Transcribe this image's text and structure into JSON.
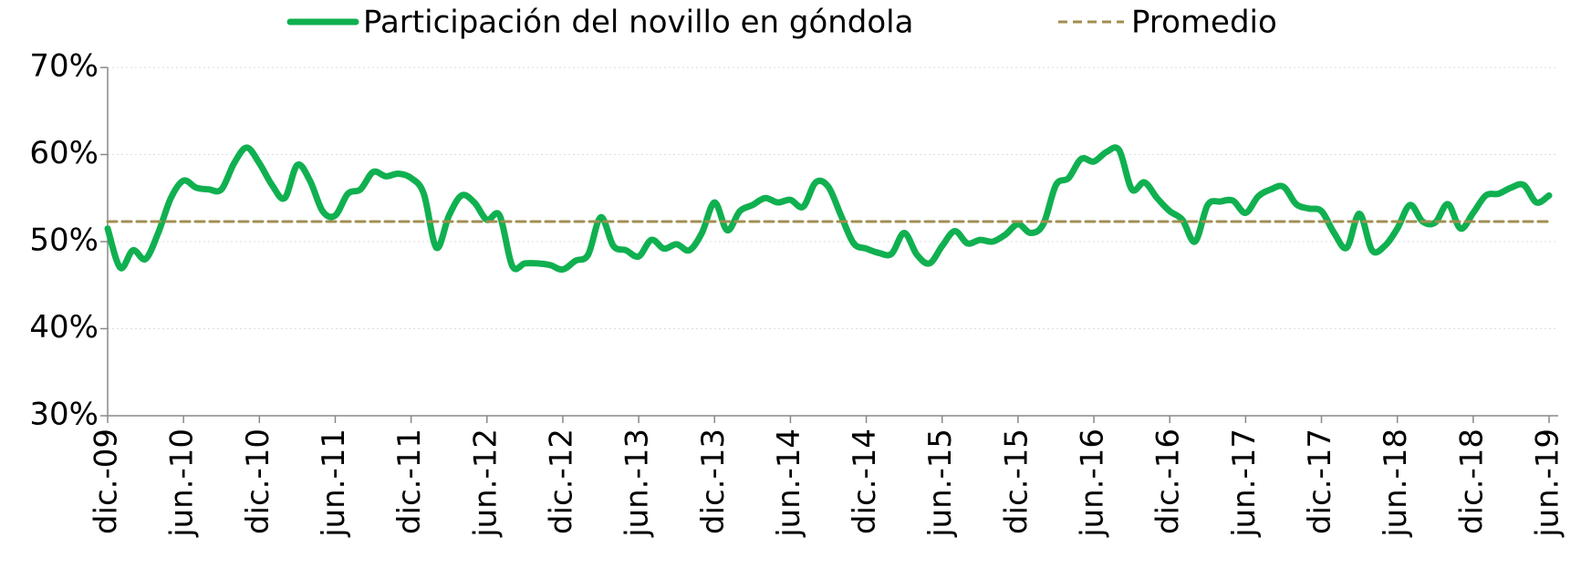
{
  "chart_data": {
    "type": "line",
    "categories": [
      "dic.-09",
      null,
      null,
      null,
      null,
      null,
      "jun.-10",
      null,
      null,
      null,
      null,
      null,
      "dic.-10",
      null,
      null,
      null,
      null,
      null,
      "jun.-11",
      null,
      null,
      null,
      null,
      null,
      "dic.-11",
      null,
      null,
      null,
      null,
      null,
      "jun.-12",
      null,
      null,
      null,
      null,
      null,
      "dic.-12",
      null,
      null,
      null,
      null,
      null,
      "jun.-13",
      null,
      null,
      null,
      null,
      null,
      "dic.-13",
      null,
      null,
      null,
      null,
      null,
      "jun.-14",
      null,
      null,
      null,
      null,
      null,
      "dic.-14",
      null,
      null,
      null,
      null,
      null,
      "jun.-15",
      null,
      null,
      null,
      null,
      null,
      "dic.-15",
      null,
      null,
      null,
      null,
      null,
      "jun.-16",
      null,
      null,
      null,
      null,
      null,
      "dic.-16",
      null,
      null,
      null,
      null,
      null,
      "jun.-17",
      null,
      null,
      null,
      null,
      null,
      "dic.-17",
      null,
      null,
      null,
      null,
      null,
      "jun.-18",
      null,
      null,
      null,
      null,
      null,
      "dic.-18",
      null,
      null,
      null,
      null,
      null,
      "jun.-19"
    ],
    "series": [
      {
        "name": "Participación del novillo en góndola",
        "color": "#10b050",
        "dashed": false,
        "values": [
          51.5,
          47,
          49,
          48,
          51,
          55,
          57,
          56.2,
          56,
          56,
          59,
          60.8,
          59,
          56.5,
          55,
          58.8,
          57,
          53.5,
          53,
          55.5,
          56,
          58,
          57.5,
          57.8,
          57.3,
          55.5,
          49.3,
          53,
          55.3,
          54.5,
          52.5,
          53,
          47.2,
          47.5,
          47.5,
          47.3,
          46.8,
          47.8,
          48.5,
          52.8,
          49.5,
          49,
          48.3,
          50.2,
          49.2,
          49.7,
          49,
          51,
          54.5,
          51.3,
          53.5,
          54.2,
          55,
          54.5,
          54.8,
          54,
          56.8,
          56.3,
          53,
          49.8,
          49.2,
          48.7,
          48.6,
          51,
          48.5,
          47.5,
          49.5,
          51.2,
          49.8,
          50.2,
          50,
          50.8,
          52,
          51,
          52,
          56.5,
          57.3,
          59.5,
          59.2,
          60.3,
          60.5,
          56,
          56.8,
          55,
          53.5,
          52.5,
          50,
          54.2,
          54.6,
          54.7,
          53.3,
          55.2,
          56,
          56.3,
          54.3,
          53.8,
          53.5,
          51,
          49.3,
          53.2,
          49,
          49.5,
          51.5,
          54.2,
          52.3,
          52.2,
          54.3,
          51.5,
          53.3,
          55.3,
          55.5,
          56.2,
          56.5,
          54.5,
          55.3
        ]
      },
      {
        "name": "Promedio",
        "color": "#a08f50",
        "dashed": true,
        "values": [
          52.3,
          52.3,
          52.3,
          52.3,
          52.3,
          52.3,
          52.3,
          52.3,
          52.3,
          52.3,
          52.3,
          52.3,
          52.3,
          52.3,
          52.3,
          52.3,
          52.3,
          52.3,
          52.3,
          52.3,
          52.3,
          52.3,
          52.3,
          52.3,
          52.3,
          52.3,
          52.3,
          52.3,
          52.3,
          52.3,
          52.3,
          52.3,
          52.3,
          52.3,
          52.3,
          52.3,
          52.3,
          52.3,
          52.3,
          52.3,
          52.3,
          52.3,
          52.3,
          52.3,
          52.3,
          52.3,
          52.3,
          52.3,
          52.3,
          52.3,
          52.3,
          52.3,
          52.3,
          52.3,
          52.3,
          52.3,
          52.3,
          52.3,
          52.3,
          52.3,
          52.3,
          52.3,
          52.3,
          52.3,
          52.3,
          52.3,
          52.3,
          52.3,
          52.3,
          52.3,
          52.3,
          52.3,
          52.3,
          52.3,
          52.3,
          52.3,
          52.3,
          52.3,
          52.3,
          52.3,
          52.3,
          52.3,
          52.3,
          52.3,
          52.3,
          52.3,
          52.3,
          52.3,
          52.3,
          52.3,
          52.3,
          52.3,
          52.3,
          52.3,
          52.3,
          52.3,
          52.3,
          52.3,
          52.3,
          52.3,
          52.3,
          52.3,
          52.3,
          52.3,
          52.3,
          52.3,
          52.3,
          52.3,
          52.3,
          52.3,
          52.3,
          52.3,
          52.3,
          52.3,
          52.3
        ]
      }
    ],
    "ylim": [
      30,
      70
    ],
    "yticks": [
      {
        "value": 30,
        "label": "30%"
      },
      {
        "value": 40,
        "label": "40%"
      },
      {
        "value": 50,
        "label": "50%"
      },
      {
        "value": 60,
        "label": "60%"
      },
      {
        "value": 70,
        "label": "70%"
      }
    ],
    "grid": true,
    "legend": "top"
  }
}
